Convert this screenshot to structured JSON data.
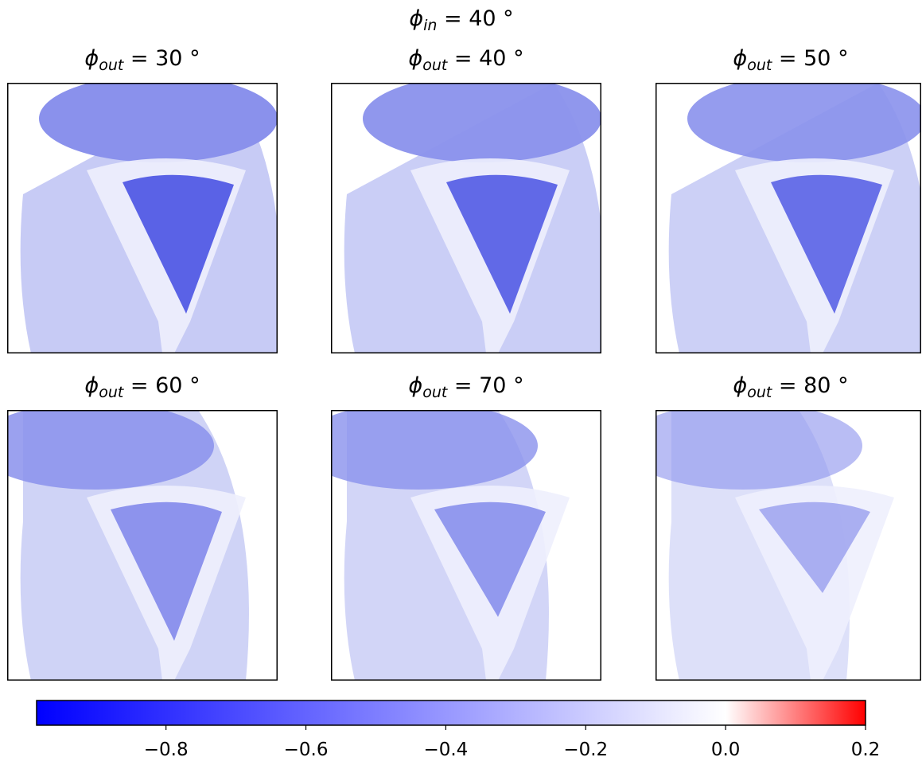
{
  "chart_data": {
    "type": "image-grid",
    "title": [
      "ϕ",
      "in",
      " = 40 °"
    ],
    "panels": [
      {
        "title": [
          "ϕ",
          "out",
          " = 30 °"
        ]
      },
      {
        "title": [
          "ϕ",
          "out",
          " = 40 °"
        ]
      },
      {
        "title": [
          "ϕ",
          "out",
          " = 50 °"
        ]
      },
      {
        "title": [
          "ϕ",
          "out",
          " = 60 °"
        ]
      },
      {
        "title": [
          "ϕ",
          "out",
          " = 70 °"
        ]
      },
      {
        "title": [
          "ϕ",
          "out",
          " = 80 °"
        ]
      }
    ],
    "colorbar": {
      "clim": [
        -0.985,
        0.2
      ],
      "center": 0,
      "cmap": [
        "#0000ff",
        "#ffffff",
        "#ff0000"
      ],
      "ticks": [
        {
          "value": -0.8,
          "label": "−0.8"
        },
        {
          "value": -0.6,
          "label": "−0.6"
        },
        {
          "value": -0.4,
          "label": "−0.4"
        },
        {
          "value": -0.2,
          "label": "−0.2"
        },
        {
          "value": 0,
          "label": "0.0"
        },
        0.2
      ]
    }
  }
}
